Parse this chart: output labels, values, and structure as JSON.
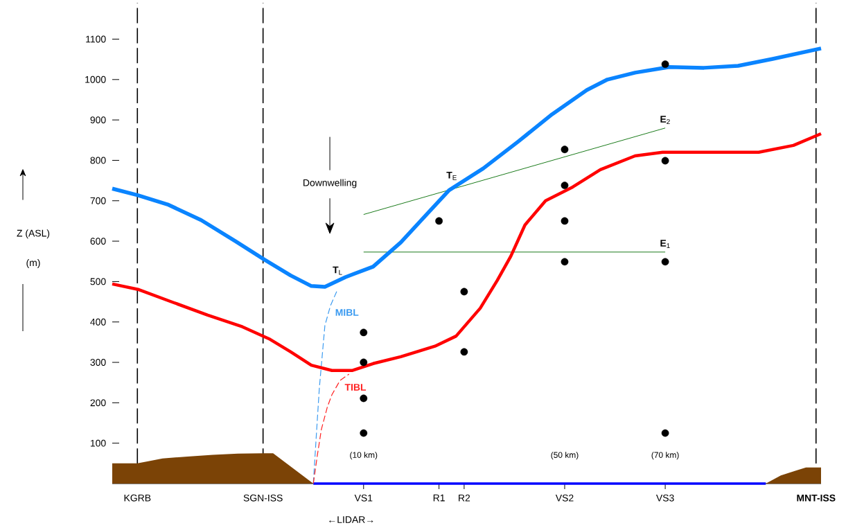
{
  "chart_data": {
    "type": "line",
    "ylabel": "Z (ASL)",
    "xlim": [
      -40,
      101
    ],
    "ylim": [
      0,
      1190
    ],
    "xticks": [
      {
        "value": 10,
        "label": "(10 km)"
      },
      {
        "value": 50,
        "label": "(50 km)"
      },
      {
        "value": 70,
        "label": "(70 km)"
      }
    ],
    "yticks": [
      100,
      200,
      300,
      400,
      500,
      600,
      700,
      800,
      900,
      1000,
      1100
    ],
    "grid": false,
    "ref_lines": [
      {
        "axis": "x",
        "value": -35,
        "label": "KGRB",
        "line_style": "dashed",
        "color": "#000000"
      },
      {
        "axis": "x",
        "value": -10,
        "label": "SGN-ISS",
        "line_style": "dashed",
        "color": "#000000"
      },
      {
        "axis": "x",
        "value": 10,
        "label": "VS1",
        "line_style": "solid",
        "color": "#000000"
      },
      {
        "axis": "x",
        "value": 25,
        "label": "R1",
        "line_style": "solid",
        "color": "#000000"
      },
      {
        "axis": "x",
        "value": 30,
        "label": "R2",
        "line_style": "solid",
        "color": "#000000"
      },
      {
        "axis": "x",
        "value": 50,
        "label": "VS2",
        "line_style": "solid",
        "color": "#000000"
      },
      {
        "axis": "x",
        "value": 70,
        "label": "VS3",
        "line_style": "solid",
        "color": "#000000"
      },
      {
        "axis": "x",
        "value": 100,
        "label": "**MNT-ISS**",
        "line_style": "dashed",
        "color": "#000000"
      }
    ],
    "series": [
      {
        "type": "area",
        "color": "#7b4306",
        "x": [
          -40,
          -35,
          -33,
          -30,
          -25,
          -20,
          -15,
          -10,
          -8,
          0
        ],
        "values": [
          50,
          50,
          55,
          62,
          67,
          71,
          74,
          75,
          75,
          0
        ]
      },
      {
        "type": "area",
        "color": "#7b4306",
        "x": [
          90,
          93,
          96,
          98,
          101
        ],
        "values": [
          0,
          20,
          32,
          40,
          40
        ]
      },
      {
        "color": "#0000ff",
        "x": [
          0,
          90
        ],
        "values": [
          0,
          0
        ]
      },
      {
        "name": "MIBL",
        "color": "#3a9af0",
        "line_style": "dashed",
        "x": [
          0,
          0.6,
          1.2,
          2.3,
          3.4,
          4.7
        ],
        "values": [
          0,
          120,
          237,
          391,
          440,
          477
        ]
      },
      {
        "name": "TIBL",
        "color": "#ff2020",
        "line_style": "dashed",
        "x": [
          0,
          0.8,
          1.6,
          2.8,
          3.7,
          5.3,
          7.1
        ],
        "values": [
          0,
          70,
          134,
          190,
          220,
          255,
          271
        ]
      },
      {
        "name": "**E**$_{1}$",
        "color": "#1a7a1a",
        "x": [
          10,
          70
        ],
        "values": [
          573,
          573
        ]
      },
      {
        "name": "**E**$_{2}$",
        "color": "#1a7a1a",
        "x": [
          10,
          70
        ],
        "values": [
          666,
          880
        ]
      },
      {
        "color": "#0a84ff",
        "x": [
          -40,
          -35,
          -29,
          -22.3,
          -15.5,
          -9.7,
          -4.5,
          -0.4,
          2.3,
          6.4,
          11.9,
          17.4,
          22.9,
          27,
          33.8,
          40.7,
          47.5,
          54.4,
          58.5,
          64,
          70.8,
          77.7,
          84.5,
          91.4,
          101
        ],
        "values": [
          730,
          714,
          691,
          652,
          600,
          554,
          515,
          489,
          487,
          511,
          537,
          597,
          671,
          726,
          780,
          846,
          914,
          974,
          1000,
          1017,
          1031,
          1029,
          1034,
          1051,
          1077
        ]
      },
      {
        "color": "#ff0000",
        "x": [
          -40,
          -34.7,
          -27.8,
          -21,
          -14.1,
          -8.6,
          -4.5,
          -0.4,
          3.7,
          7.8,
          11.9,
          17.4,
          24.2,
          28.4,
          33.2,
          36.6,
          39.3,
          42.1,
          46.2,
          51.6,
          57.1,
          64,
          69.5,
          88.6,
          95.5,
          101
        ],
        "values": [
          494,
          480,
          448,
          417,
          388,
          357,
          326,
          293,
          280,
          280,
          297,
          314,
          340,
          365,
          434,
          503,
          563,
          640,
          700,
          734,
          777,
          811,
          820,
          820,
          837,
          866
        ]
      },
      {
        "type": "scatter",
        "marker": "circle",
        "color": "#000000",
        "x": [
          10,
          10,
          10,
          10,
          25,
          30,
          30,
          50,
          50,
          50,
          50,
          70,
          70,
          70,
          70
        ],
        "values": [
          374,
          300,
          211,
          125,
          650,
          475,
          326,
          827,
          738,
          650,
          549,
          1038,
          799,
          549,
          125
        ]
      }
    ],
    "annotations": [
      "Downwelling",
      "**T**$_{L}$",
      "**T**$_{E}$",
      "←LIDAR→",
      "(m)"
    ]
  }
}
